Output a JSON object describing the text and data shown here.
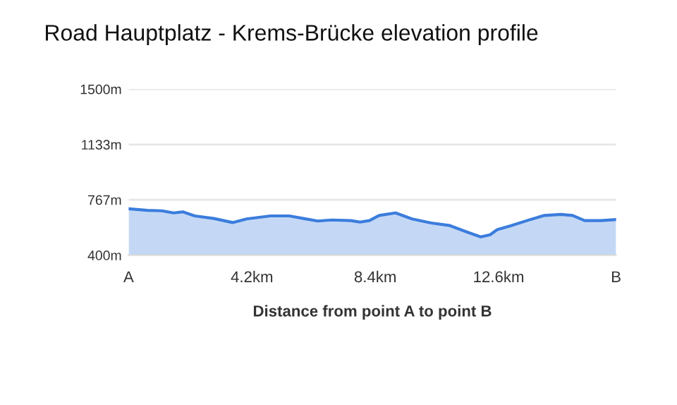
{
  "chart_data": {
    "type": "area",
    "title": "Road Hauptplatz - Krems-Brücke elevation profile",
    "xlabel": "Distance from point A to point B",
    "x": [
      0,
      0.64,
      1.13,
      1.53,
      1.85,
      2.25,
      2.9,
      3.54,
      4.02,
      4.83,
      5.47,
      5.95,
      6.44,
      6.92,
      7.56,
      7.88,
      8.2,
      8.53,
      9.09,
      9.65,
      10.3,
      10.94,
      11.5,
      11.99,
      12.31,
      12.55,
      13.03,
      13.68,
      14.16,
      14.72,
      15.12,
      15.53,
      16.09,
      16.6
    ],
    "series": [
      {
        "color": "#3b7ddd",
        "values": [
          707,
          697,
          694,
          680,
          687,
          660,
          643,
          616,
          640,
          660,
          660,
          643,
          626,
          633,
          629,
          619,
          629,
          663,
          680,
          640,
          613,
          596,
          555,
          521,
          535,
          569,
          596,
          636,
          663,
          670,
          663,
          629,
          629,
          636
        ]
      }
    ],
    "xlim": [
      0,
      16.6
    ],
    "xticks": [
      {
        "value": 0,
        "label": "A"
      },
      {
        "value": 4.2,
        "label": "4.2km"
      },
      {
        "value": 8.4,
        "label": "8.4km"
      },
      {
        "value": 12.6,
        "label": "12.6km"
      },
      {
        "value": 16.6,
        "label": "B"
      }
    ],
    "ylim": [
      400,
      1500
    ],
    "yticks": [
      {
        "value": 400,
        "label": "400m"
      },
      {
        "value": 767,
        "label": "767m"
      },
      {
        "value": 1133,
        "label": "1133m"
      },
      {
        "value": 1500,
        "label": "1500m"
      }
    ],
    "grid": "y"
  }
}
